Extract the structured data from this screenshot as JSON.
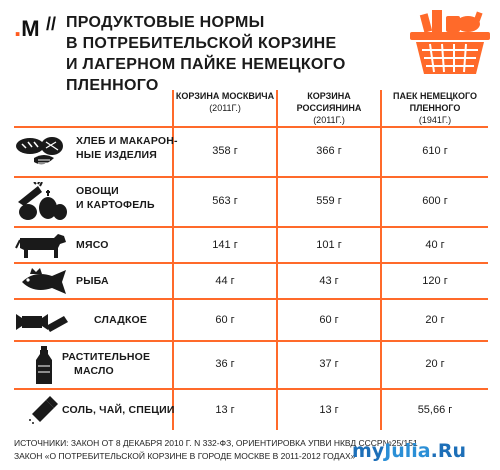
{
  "header": {
    "logo_letter": "M",
    "slashes": "//",
    "title_lines": [
      "ПРОДУКТОВЫЕ НОРМЫ",
      "В ПОТРЕБИТЕЛЬСКОЙ КОРЗИНЕ",
      "И ЛАГЕРНОМ ПАЙКЕ НЕМЕЦКОГО ПЛЕННОГО"
    ]
  },
  "table": {
    "columns": [
      {
        "title": "КОРЗИНА МОСКВИЧА",
        "sub": "(2011г.)"
      },
      {
        "title": "КОРЗИНА РОССИЯНИНА",
        "sub": "(2011г.)"
      },
      {
        "title": "ПАЕК НЕМЕЦКОГО ПЛЕННОГО",
        "title_line1": "ПАЕК НЕМЕЦКОГО",
        "title_line2": "ПЛЕННОГО",
        "sub": "(1941г.)"
      }
    ],
    "rows": [
      {
        "icon": "bread-icon",
        "label_line1": "ХЛЕБ И МАКАРОН-",
        "label_line2": "НЫЕ ИЗДЕЛИЯ",
        "values": [
          "358 г",
          "366 г",
          "610 г"
        ]
      },
      {
        "icon": "vegetables-icon",
        "label_line1": "ОВОЩИ",
        "label_line2": "И КАРТОФЕЛЬ",
        "values": [
          "563 г",
          "559 г",
          "600 г"
        ]
      },
      {
        "icon": "cow-icon",
        "label_line1": "МЯСО",
        "label_line2": "",
        "values": [
          "141 г",
          "101 г",
          "40 г"
        ]
      },
      {
        "icon": "fish-icon",
        "label_line1": "РЫБА",
        "label_line2": "",
        "values": [
          "44 г",
          "43 г",
          "120 г"
        ]
      },
      {
        "icon": "candy-icon",
        "label_line1": "СЛАДКОЕ",
        "label_line2": "",
        "values": [
          "60 г",
          "60 г",
          "20 г"
        ]
      },
      {
        "icon": "oil-bottle-icon",
        "label_line1": "РАСТИТЕЛЬНОЕ",
        "label_line2": "МАСЛО",
        "values": [
          "36 г",
          "37 г",
          "20 г"
        ]
      },
      {
        "icon": "salt-shaker-icon",
        "label_line1": "СОЛЬ, ЧАЙ, СПЕЦИИ",
        "label_line2": "",
        "values": [
          "13 г",
          "13 г",
          "55,66 г"
        ]
      }
    ]
  },
  "footer": {
    "line1": "ИСТОЧНИКИ:  ЗАКОН ОТ 8 ДЕКАБРЯ 2010 Г. N 332-ФЗ, ОРИЕНТИРОВКА УПВИ НКВД СССР№25/151",
    "line2": "ЗАКОН «О ПОТРЕБИТЕЛЬСКОЙ КОРЗИНЕ В ГОРОДЕ МОСКВЕ В 2011-2012 ГОДАХ»"
  },
  "watermark": {
    "part1": "my",
    "part2": "Julia",
    "part3": ".Ru"
  },
  "colors": {
    "accent": "#ff6a2a",
    "ink": "#1a1a1a",
    "watermark": "#1d6fb8"
  }
}
